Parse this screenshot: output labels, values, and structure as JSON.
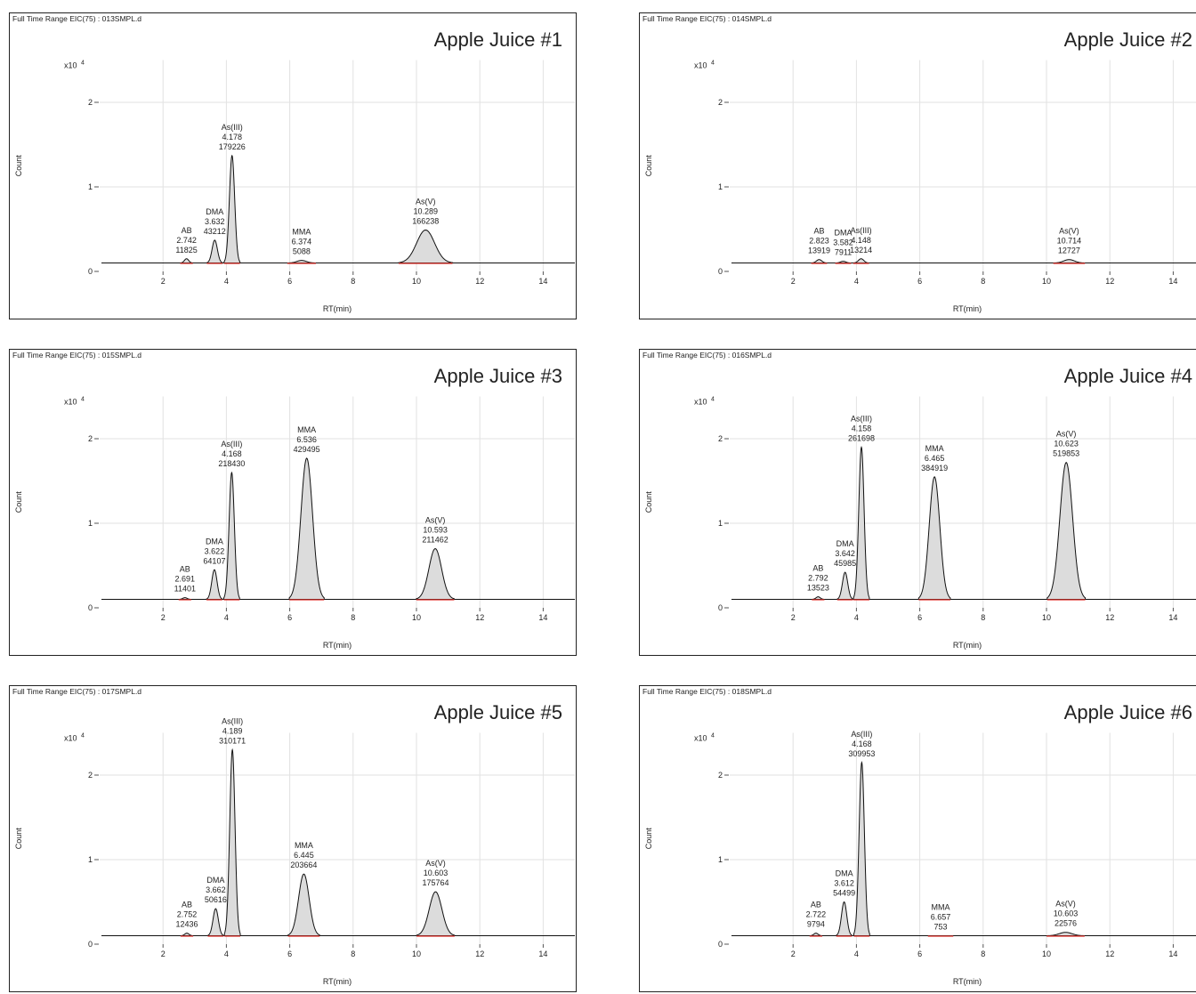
{
  "chart_data": [
    {
      "type": "line",
      "header": "Full Time Range EIC(75) : 013SMPL.d",
      "title": "Apple Juice #1",
      "ylabel": "Count",
      "xlabel": "RT(min)",
      "y_scale": {
        "prefix": "x10",
        "exponent": 4
      },
      "xlim": [
        0,
        15
      ],
      "ylim": [
        0,
        2.5
      ],
      "xticks": [
        2,
        4,
        6,
        8,
        10,
        12,
        14
      ],
      "yticks": [
        0,
        1,
        2
      ],
      "grid": true,
      "baseline": 0.1,
      "color": "#dcdcdc",
      "peaks": [
        {
          "name": "AB",
          "rt": 2.742,
          "area": 11825,
          "height": 0.15,
          "width": 0.4
        },
        {
          "name": "DMA",
          "rt": 3.632,
          "area": 43212,
          "height": 0.37,
          "width": 0.5
        },
        {
          "name": "As(III)",
          "rt": 4.178,
          "area": 179226,
          "height": 1.37,
          "width": 0.5
        },
        {
          "name": "MMA",
          "rt": 6.374,
          "area": 5088,
          "height": 0.13,
          "width": 0.9
        },
        {
          "name": "As(V)",
          "rt": 10.289,
          "area": 166238,
          "height": 0.49,
          "width": 1.7
        }
      ]
    },
    {
      "type": "line",
      "header": "Full Time Range EIC(75) : 014SMPL.d",
      "title": "Apple Juice #2",
      "ylabel": "Count",
      "xlabel": "RT(min)",
      "y_scale": {
        "prefix": "x10",
        "exponent": 4
      },
      "xlim": [
        0,
        15
      ],
      "ylim": [
        0,
        2.5
      ],
      "xticks": [
        2,
        4,
        6,
        8,
        10,
        12,
        14
      ],
      "yticks": [
        0,
        1,
        2
      ],
      "grid": true,
      "baseline": 0.1,
      "color": "#dcdcdc",
      "peaks": [
        {
          "name": "AB",
          "rt": 2.823,
          "area": 13919,
          "height": 0.14,
          "width": 0.5
        },
        {
          "name": "DMA",
          "rt": 3.582,
          "area": 7911,
          "height": 0.12,
          "width": 0.5
        },
        {
          "name": "As(III)",
          "rt": 4.148,
          "area": 13214,
          "height": 0.15,
          "width": 0.5
        },
        {
          "name": "As(V)",
          "rt": 10.714,
          "area": 12727,
          "height": 0.14,
          "width": 1.0
        }
      ]
    },
    {
      "type": "line",
      "header": "Full Time Range EIC(75) : 015SMPL.d",
      "title": "Apple Juice #3",
      "ylabel": "Count",
      "xlabel": "RT(min)",
      "y_scale": {
        "prefix": "x10",
        "exponent": 4
      },
      "xlim": [
        0,
        15
      ],
      "ylim": [
        0,
        2.5
      ],
      "xticks": [
        2,
        4,
        6,
        8,
        10,
        12,
        14
      ],
      "yticks": [
        0,
        1,
        2
      ],
      "grid": true,
      "baseline": 0.1,
      "color": "#dcdcdc",
      "peaks": [
        {
          "name": "AB",
          "rt": 2.691,
          "area": 11401,
          "height": 0.12,
          "width": 0.4
        },
        {
          "name": "DMA",
          "rt": 3.622,
          "area": 64107,
          "height": 0.45,
          "width": 0.5
        },
        {
          "name": "As(III)",
          "rt": 4.168,
          "area": 218430,
          "height": 1.6,
          "width": 0.5
        },
        {
          "name": "MMA",
          "rt": 6.536,
          "area": 429495,
          "height": 1.77,
          "width": 1.1
        },
        {
          "name": "As(V)",
          "rt": 10.593,
          "area": 211462,
          "height": 0.7,
          "width": 1.2
        }
      ]
    },
    {
      "type": "line",
      "header": "Full Time Range EIC(75) : 016SMPL.d",
      "title": "Apple Juice #4",
      "ylabel": "Count",
      "xlabel": "RT(min)",
      "y_scale": {
        "prefix": "x10",
        "exponent": 4
      },
      "xlim": [
        0,
        15
      ],
      "ylim": [
        0,
        2.5
      ],
      "xticks": [
        2,
        4,
        6,
        8,
        10,
        12,
        14
      ],
      "yticks": [
        0,
        1,
        2
      ],
      "grid": true,
      "baseline": 0.1,
      "color": "#dcdcdc",
      "peaks": [
        {
          "name": "AB",
          "rt": 2.792,
          "area": 13523,
          "height": 0.13,
          "width": 0.4
        },
        {
          "name": "DMA",
          "rt": 3.642,
          "area": 45985,
          "height": 0.42,
          "width": 0.5
        },
        {
          "name": "As(III)",
          "rt": 4.158,
          "area": 261698,
          "height": 1.9,
          "width": 0.5
        },
        {
          "name": "MMA",
          "rt": 6.465,
          "area": 384919,
          "height": 1.55,
          "width": 1.0
        },
        {
          "name": "As(V)",
          "rt": 10.623,
          "area": 519853,
          "height": 1.72,
          "width": 1.2
        }
      ]
    },
    {
      "type": "line",
      "header": "Full Time Range EIC(75) : 017SMPL.d",
      "title": "Apple Juice #5",
      "ylabel": "Count",
      "xlabel": "RT(min)",
      "y_scale": {
        "prefix": "x10",
        "exponent": 4
      },
      "xlim": [
        0,
        15
      ],
      "ylim": [
        0,
        2.5
      ],
      "xticks": [
        2,
        4,
        6,
        8,
        10,
        12,
        14
      ],
      "yticks": [
        0,
        1,
        2
      ],
      "grid": true,
      "baseline": 0.1,
      "color": "#dcdcdc",
      "peaks": [
        {
          "name": "AB",
          "rt": 2.752,
          "area": 12436,
          "height": 0.13,
          "width": 0.4
        },
        {
          "name": "DMA",
          "rt": 3.662,
          "area": 50616,
          "height": 0.42,
          "width": 0.5
        },
        {
          "name": "As(III)",
          "rt": 4.189,
          "area": 310171,
          "height": 2.3,
          "width": 0.5
        },
        {
          "name": "MMA",
          "rt": 6.445,
          "area": 203664,
          "height": 0.83,
          "width": 1.0
        },
        {
          "name": "As(V)",
          "rt": 10.603,
          "area": 175764,
          "height": 0.62,
          "width": 1.2
        }
      ]
    },
    {
      "type": "line",
      "header": "Full Time Range EIC(75) : 018SMPL.d",
      "title": "Apple Juice #6",
      "ylabel": "Count",
      "xlabel": "RT(min)",
      "y_scale": {
        "prefix": "x10",
        "exponent": 4
      },
      "xlim": [
        0,
        15
      ],
      "ylim": [
        0,
        2.5
      ],
      "xticks": [
        2,
        4,
        6,
        8,
        10,
        12,
        14
      ],
      "yticks": [
        0,
        1,
        2
      ],
      "grid": true,
      "baseline": 0.1,
      "color": "#dcdcdc",
      "peaks": [
        {
          "name": "AB",
          "rt": 2.722,
          "area": 9794,
          "height": 0.13,
          "width": 0.4
        },
        {
          "name": "DMA",
          "rt": 3.612,
          "area": 54499,
          "height": 0.5,
          "width": 0.5
        },
        {
          "name": "As(III)",
          "rt": 4.168,
          "area": 309953,
          "height": 2.15,
          "width": 0.5
        },
        {
          "name": "MMA",
          "rt": 6.657,
          "area": 753,
          "height": 0.1,
          "width": 0.8
        },
        {
          "name": "As(V)",
          "rt": 10.603,
          "area": 22576,
          "height": 0.14,
          "width": 1.2
        }
      ]
    }
  ]
}
